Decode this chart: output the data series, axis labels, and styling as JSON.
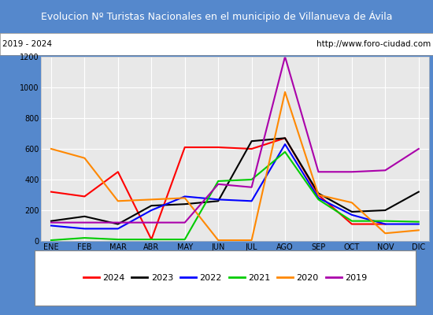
{
  "title": "Evolucion Nº Turistas Nacionales en el municipio de Villanueva de Ávila",
  "subtitle_left": "2019 - 2024",
  "subtitle_right": "http://www.foro-ciudad.com",
  "months": [
    "ENE",
    "FEB",
    "MAR",
    "ABR",
    "MAY",
    "JUN",
    "JUL",
    "AGO",
    "SEP",
    "OCT",
    "NOV",
    "DIC"
  ],
  "series": {
    "2024": {
      "color": "#ff0000",
      "data": [
        320,
        290,
        450,
        10,
        610,
        610,
        600,
        670,
        300,
        110,
        110,
        null
      ]
    },
    "2023": {
      "color": "#000000",
      "data": [
        130,
        160,
        110,
        230,
        240,
        260,
        650,
        670,
        310,
        190,
        200,
        320
      ]
    },
    "2022": {
      "color": "#0000ff",
      "data": [
        100,
        80,
        80,
        200,
        290,
        270,
        260,
        630,
        280,
        170,
        110,
        110
      ]
    },
    "2021": {
      "color": "#00cc00",
      "data": [
        5,
        20,
        10,
        10,
        10,
        390,
        400,
        580,
        270,
        130,
        130,
        125
      ]
    },
    "2020": {
      "color": "#ff8800",
      "data": [
        600,
        540,
        260,
        270,
        280,
        5,
        5,
        970,
        300,
        250,
        50,
        70
      ]
    },
    "2019": {
      "color": "#aa00aa",
      "data": [
        120,
        120,
        120,
        120,
        120,
        370,
        350,
        1200,
        450,
        450,
        460,
        600
      ]
    }
  },
  "ylim": [
    0,
    1200
  ],
  "yticks": [
    0,
    200,
    400,
    600,
    800,
    1000,
    1200
  ],
  "plot_bg_color": "#e8e8e8",
  "outer_bg_color": "#5588cc",
  "title_bg_color": "#4a90d9",
  "title_color": "#ffffff",
  "grid_color": "#ffffff",
  "legend_order": [
    "2024",
    "2023",
    "2022",
    "2021",
    "2020",
    "2019"
  ],
  "title_fontsize": 9.0,
  "tick_fontsize": 7.0
}
